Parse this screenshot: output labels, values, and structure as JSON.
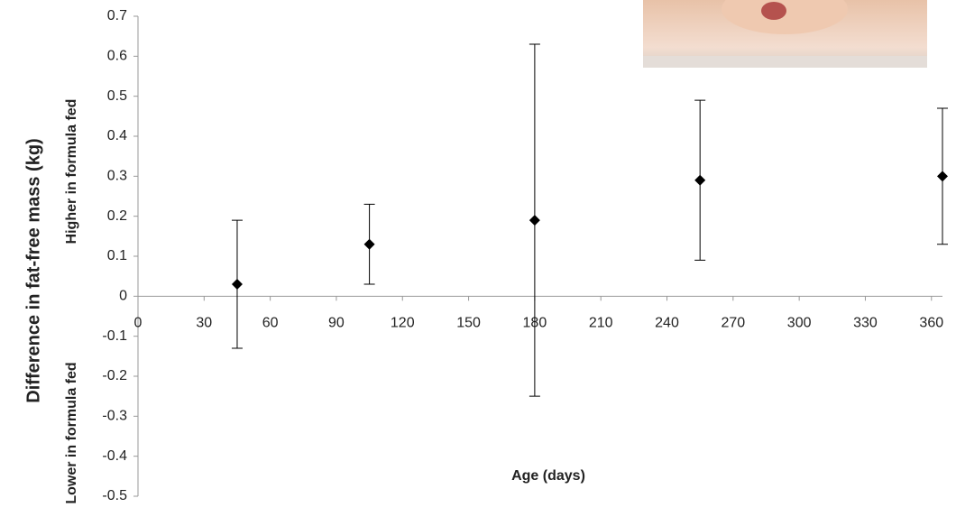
{
  "chart_data": {
    "type": "scatter",
    "y_label": "Difference in fat-free mass (kg)",
    "x_label": "Age (days)",
    "annotations": [
      "Higher in formula fed",
      "Lower in formula fed"
    ],
    "series": [
      {
        "x": [
          45,
          105,
          180,
          255,
          365
        ],
        "values": [
          0.03,
          0.13,
          0.19,
          0.29,
          0.3
        ],
        "errors": [
          0.16,
          0.1,
          0.44,
          0.2,
          0.17
        ],
        "color": "#000000"
      }
    ],
    "xlim": [
      0,
      365
    ],
    "xticks": [
      0,
      30,
      60,
      90,
      120,
      150,
      180,
      210,
      240,
      270,
      300,
      330,
      360
    ],
    "ylim": [
      -0.5,
      0.7
    ],
    "yticks": [
      -0.5,
      -0.4,
      -0.3,
      -0.2,
      -0.1,
      0,
      0.1,
      0.2,
      0.3,
      0.4,
      0.5,
      0.6,
      0.7
    ],
    "grid": false
  }
}
